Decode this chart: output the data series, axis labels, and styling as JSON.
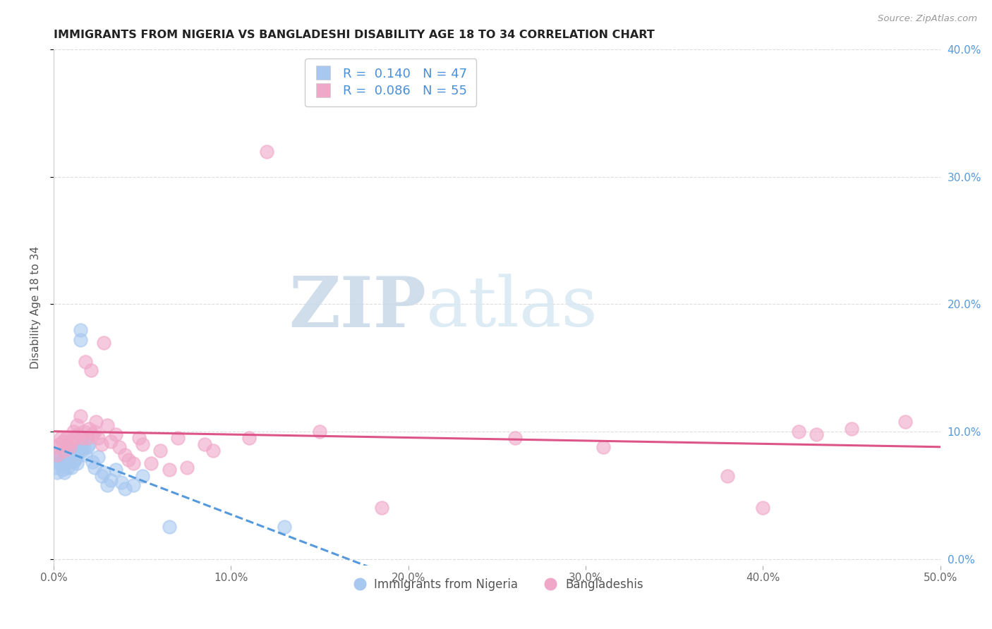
{
  "title": "IMMIGRANTS FROM NIGERIA VS BANGLADESHI DISABILITY AGE 18 TO 34 CORRELATION CHART",
  "source": "Source: ZipAtlas.com",
  "ylabel": "Disability Age 18 to 34",
  "xlim": [
    0.0,
    0.5
  ],
  "ylim": [
    -0.005,
    0.4
  ],
  "xticks": [
    0.0,
    0.1,
    0.2,
    0.3,
    0.4,
    0.5
  ],
  "yticks": [
    0.0,
    0.1,
    0.2,
    0.3,
    0.4
  ],
  "xtick_labels": [
    "0.0%",
    "10.0%",
    "20.0%",
    "30.0%",
    "40.0%",
    "50.0%"
  ],
  "ytick_labels_right": [
    "0.0%",
    "10.0%",
    "20.0%",
    "30.0%",
    "40.0%"
  ],
  "nigeria_color": "#a8c8f0",
  "bangladesh_color": "#f0a8c8",
  "legend_label1": "R =  0.140   N = 47",
  "legend_label2": "R =  0.086   N = 55",
  "legend_bottom_label1": "Immigrants from Nigeria",
  "legend_bottom_label2": "Bangladeshis",
  "watermark_zip": "ZIP",
  "watermark_atlas": "atlas",
  "nigeria_x": [
    0.001,
    0.002,
    0.003,
    0.003,
    0.004,
    0.004,
    0.005,
    0.005,
    0.006,
    0.006,
    0.007,
    0.007,
    0.008,
    0.008,
    0.009,
    0.009,
    0.01,
    0.01,
    0.011,
    0.011,
    0.012,
    0.012,
    0.013,
    0.013,
    0.014,
    0.015,
    0.015,
    0.016,
    0.016,
    0.017,
    0.018,
    0.019,
    0.02,
    0.022,
    0.023,
    0.025,
    0.027,
    0.028,
    0.03,
    0.032,
    0.035,
    0.038,
    0.04,
    0.045,
    0.05,
    0.065,
    0.13
  ],
  "nigeria_y": [
    0.072,
    0.068,
    0.075,
    0.08,
    0.082,
    0.076,
    0.07,
    0.078,
    0.068,
    0.075,
    0.082,
    0.076,
    0.08,
    0.072,
    0.085,
    0.078,
    0.08,
    0.072,
    0.083,
    0.076,
    0.078,
    0.082,
    0.075,
    0.08,
    0.085,
    0.18,
    0.172,
    0.09,
    0.085,
    0.088,
    0.082,
    0.088,
    0.09,
    0.076,
    0.072,
    0.08,
    0.065,
    0.068,
    0.058,
    0.062,
    0.07,
    0.06,
    0.055,
    0.058,
    0.065,
    0.025,
    0.025
  ],
  "bangladesh_x": [
    0.001,
    0.002,
    0.003,
    0.004,
    0.005,
    0.006,
    0.007,
    0.008,
    0.009,
    0.01,
    0.011,
    0.012,
    0.013,
    0.014,
    0.015,
    0.016,
    0.017,
    0.018,
    0.019,
    0.02,
    0.021,
    0.022,
    0.023,
    0.024,
    0.025,
    0.027,
    0.028,
    0.03,
    0.032,
    0.035,
    0.037,
    0.04,
    0.042,
    0.045,
    0.048,
    0.05,
    0.055,
    0.06,
    0.065,
    0.07,
    0.075,
    0.085,
    0.09,
    0.11,
    0.12,
    0.15,
    0.185,
    0.26,
    0.31,
    0.38,
    0.4,
    0.42,
    0.43,
    0.45,
    0.48
  ],
  "bangladesh_y": [
    0.088,
    0.082,
    0.09,
    0.095,
    0.092,
    0.085,
    0.095,
    0.09,
    0.088,
    0.092,
    0.1,
    0.095,
    0.105,
    0.098,
    0.112,
    0.095,
    0.1,
    0.155,
    0.095,
    0.102,
    0.148,
    0.098,
    0.1,
    0.108,
    0.095,
    0.09,
    0.17,
    0.105,
    0.092,
    0.098,
    0.088,
    0.082,
    0.078,
    0.075,
    0.095,
    0.09,
    0.075,
    0.085,
    0.07,
    0.095,
    0.072,
    0.09,
    0.085,
    0.095,
    0.32,
    0.1,
    0.04,
    0.095,
    0.088,
    0.065,
    0.04,
    0.1,
    0.098,
    0.102,
    0.108
  ]
}
